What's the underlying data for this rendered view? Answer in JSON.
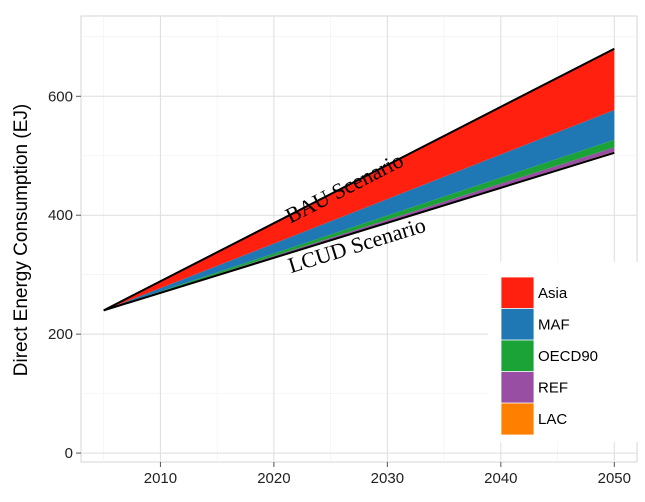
{
  "chart_data": {
    "type": "area",
    "stacked": true,
    "title": "",
    "xlabel": "",
    "ylabel": "Direct Energy Consumption (EJ)",
    "xlim": [
      2003,
      2052
    ],
    "ylim": [
      -15,
      735
    ],
    "x_ticks": [
      2010,
      2020,
      2030,
      2040,
      2050
    ],
    "y_ticks": [
      0,
      200,
      400,
      600
    ],
    "grid": true,
    "legend_position": "bottom-right",
    "x": [
      2005,
      2050
    ],
    "baseline": {
      "name": "LCUD Scenario",
      "values": [
        240,
        505
      ]
    },
    "top_line": {
      "name": "BAU Scenario",
      "values": [
        240,
        680
      ]
    },
    "series": [
      {
        "name": "LAC",
        "color": "#FF7F00",
        "values": [
          0,
          2
        ]
      },
      {
        "name": "REF",
        "color": "#984EA3",
        "values": [
          0,
          7
        ]
      },
      {
        "name": "OECD90",
        "color": "#1BA338",
        "values": [
          0,
          13
        ]
      },
      {
        "name": "MAF",
        "color": "#1F78B4",
        "values": [
          0,
          50
        ]
      },
      {
        "name": "Asia",
        "color": "#FF2010",
        "values": [
          0,
          103
        ]
      }
    ],
    "annotations": [
      {
        "text": "BAU Scenario",
        "x": 2026.5,
        "y": 435
      },
      {
        "text": "LCUD Scenario",
        "x": 2027.5,
        "y": 338
      }
    ],
    "legend_entries": [
      "Asia",
      "MAF",
      "OECD90",
      "REF",
      "LAC"
    ]
  }
}
